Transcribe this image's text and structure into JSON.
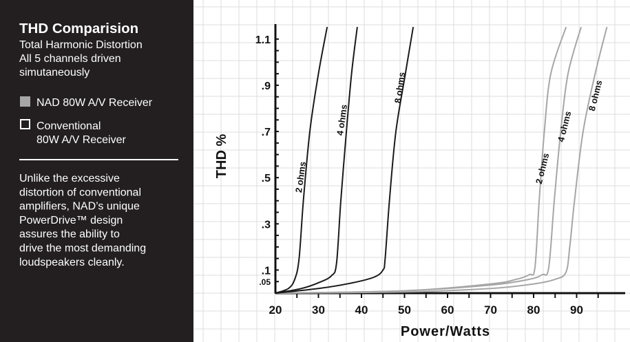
{
  "chart_data": {
    "type": "line",
    "title": "THD Comparision",
    "subtitle_lines": [
      "Total Harmonic Distortion",
      "All 5 channels driven",
      "simutaneously"
    ],
    "legend": [
      {
        "label": "NAD 80W A/V Receiver",
        "style": "filled-gray"
      },
      {
        "label_lines": [
          "Conventional",
          "80W A/V Receiver"
        ],
        "style": "outline-box"
      }
    ],
    "description_lines": [
      "Unlike the excessive",
      "distortion of conventional",
      "amplifiers, NAD’s unique",
      "PowerDrive™ design",
      "assures the ability to",
      "drive the most demanding",
      "loudspeakers cleanly."
    ],
    "xlabel": "Power/Watts",
    "ylabel": "THD  %",
    "xlim": [
      20,
      97
    ],
    "ylim": [
      0,
      1.15
    ],
    "x_ticks": [
      20,
      30,
      40,
      50,
      60,
      70,
      80,
      90
    ],
    "y_ticks": [
      {
        "value": 0.05,
        "label": ".05"
      },
      {
        "value": 0.1,
        "label": ".1"
      },
      {
        "value": 0.3,
        "label": ".3"
      },
      {
        "value": 0.5,
        "label": ".5"
      },
      {
        "value": 0.7,
        "label": ".7"
      },
      {
        "value": 0.9,
        "label": ".9"
      },
      {
        "value": 1.1,
        "label": "1.1"
      }
    ],
    "series": [
      {
        "label": "2 ohms",
        "group": "Conventional 80W A/V Receiver",
        "color": "#1a1a1a",
        "points": [
          [
            20,
            0.0
          ],
          [
            23,
            0.02
          ],
          [
            24.5,
            0.06
          ],
          [
            25.5,
            0.15
          ],
          [
            26.5,
            0.4
          ],
          [
            28,
            0.7
          ],
          [
            30,
            0.95
          ],
          [
            32,
            1.15
          ]
        ]
      },
      {
        "label": "4 ohms",
        "group": "Conventional 80W A/V Receiver",
        "color": "#1a1a1a",
        "points": [
          [
            20,
            0.0
          ],
          [
            26,
            0.02
          ],
          [
            30,
            0.045
          ],
          [
            33,
            0.075
          ],
          [
            34.2,
            0.13
          ],
          [
            35.2,
            0.4
          ],
          [
            36.5,
            0.7
          ],
          [
            37.7,
            0.95
          ],
          [
            39,
            1.15
          ]
        ]
      },
      {
        "label": "8 ohms",
        "group": "Conventional 80W A/V Receiver",
        "color": "#1a1a1a",
        "points": [
          [
            20,
            0.0
          ],
          [
            30,
            0.02
          ],
          [
            38,
            0.045
          ],
          [
            43,
            0.07
          ],
          [
            45,
            0.1
          ],
          [
            45.5,
            0.15
          ],
          [
            46.5,
            0.4
          ],
          [
            48,
            0.7
          ],
          [
            50.2,
            0.95
          ],
          [
            52,
            1.15
          ]
        ]
      },
      {
        "label": "2 ohms",
        "group": "NAD 80W A/V Receiver",
        "color": "#a6a6a6",
        "points": [
          [
            20,
            0.0
          ],
          [
            50,
            0.01
          ],
          [
            70,
            0.04
          ],
          [
            76,
            0.06
          ],
          [
            79,
            0.08
          ],
          [
            80.3,
            0.11
          ],
          [
            81.3,
            0.4
          ],
          [
            82.5,
            0.7
          ],
          [
            84,
            0.95
          ],
          [
            87.5,
            1.15
          ]
        ]
      },
      {
        "label": "4 ohms",
        "group": "NAD 80W A/V Receiver",
        "color": "#a6a6a6",
        "points": [
          [
            20,
            0.0
          ],
          [
            50,
            0.01
          ],
          [
            70,
            0.035
          ],
          [
            79,
            0.06
          ],
          [
            82,
            0.08
          ],
          [
            83.5,
            0.11
          ],
          [
            84.8,
            0.4
          ],
          [
            86.3,
            0.7
          ],
          [
            88,
            0.95
          ],
          [
            91,
            1.15
          ]
        ]
      },
      {
        "label": "8 ohms",
        "group": "NAD 80W A/V Receiver",
        "color": "#a6a6a6",
        "points": [
          [
            20,
            0.0
          ],
          [
            50,
            0.005
          ],
          [
            70,
            0.02
          ],
          [
            80,
            0.04
          ],
          [
            85,
            0.06
          ],
          [
            87.5,
            0.09
          ],
          [
            88.4,
            0.2
          ],
          [
            89.5,
            0.4
          ],
          [
            91.5,
            0.7
          ],
          [
            94.3,
            0.95
          ],
          [
            97,
            1.15
          ]
        ]
      }
    ]
  },
  "colors": {
    "panel": "#231f20",
    "panel_text": "#ffffff",
    "legend_nad": "#a6a6a6",
    "grid": "#dcdcdc",
    "axis": "#111111",
    "conventional": "#1a1a1a",
    "nad": "#a6a6a6"
  }
}
